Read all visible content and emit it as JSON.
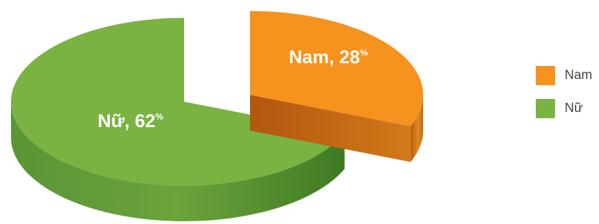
{
  "chart_data": {
    "type": "pie",
    "style": "3d-exploded",
    "slices": [
      {
        "name": "Nam",
        "value": 28,
        "label": "Nam, 28",
        "unit": "%",
        "color": "#F6921E",
        "side_color": "#C8650F"
      },
      {
        "name": "Nữ",
        "value": 62,
        "label": "Nữ, 62",
        "unit": "%",
        "color": "#7AB342",
        "side_color": "#4F8A2C"
      }
    ],
    "legend_position": "right"
  }
}
